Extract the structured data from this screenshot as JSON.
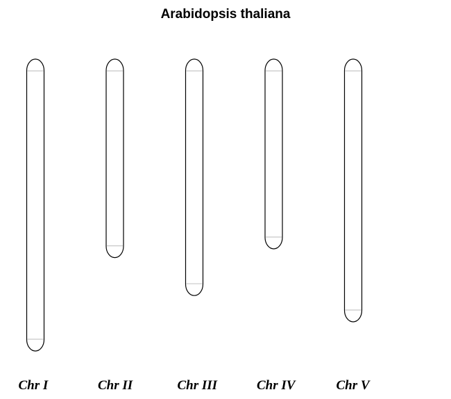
{
  "title": "Arabidopsis thaliana",
  "colors": {
    "outline": "#000000",
    "telomere_band": "#c8c8c8",
    "background": "#ffffff"
  },
  "chromosomes": [
    {
      "label": "Chr I",
      "relative_length": 1.0
    },
    {
      "label": "Chr II",
      "relative_length": 0.68
    },
    {
      "label": "Chr III",
      "relative_length": 0.81
    },
    {
      "label": "Chr IV",
      "relative_length": 0.65
    },
    {
      "label": "Chr V",
      "relative_length": 0.9
    }
  ]
}
